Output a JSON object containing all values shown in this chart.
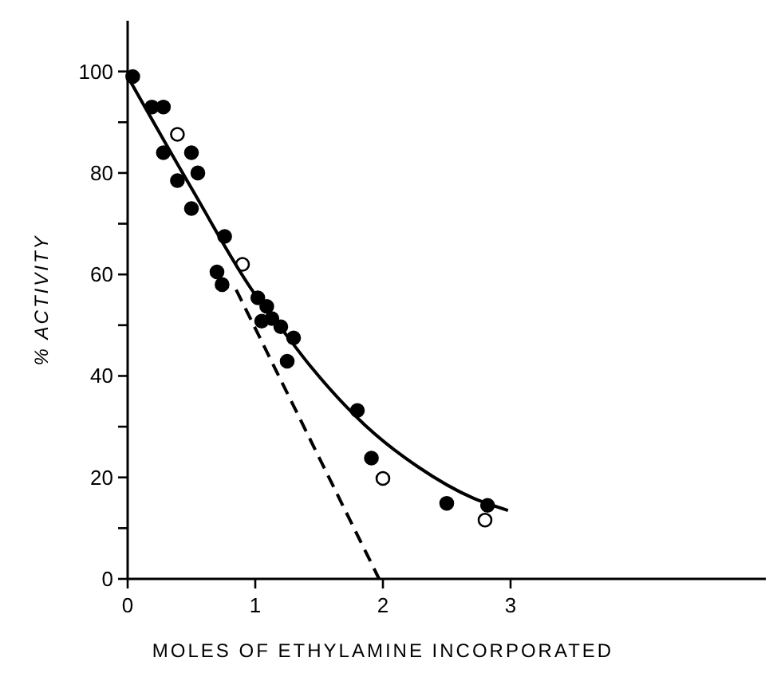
{
  "chart_data": {
    "type": "scatter",
    "xlabel": "MOLES OF ETHYLAMINE INCORPORATED",
    "ylabel": "% ACTIVITY",
    "xlim": [
      0,
      5
    ],
    "ylim": [
      0,
      110
    ],
    "xticks": [
      0,
      1,
      2,
      3
    ],
    "yticks": [
      0,
      {
        "value": 10,
        "label": null
      },
      20,
      {
        "value": 30,
        "label": null
      },
      40,
      {
        "value": 50,
        "label": null
      },
      60,
      {
        "value": 70,
        "label": null
      },
      80,
      {
        "value": 90,
        "label": null
      },
      100
    ],
    "grid": false,
    "marker": "circle",
    "series": [
      {
        "color": "#000000",
        "x": [
          0.04,
          0.19,
          0.28,
          0.28,
          0.5,
          0.39,
          0.55,
          0.5,
          0.76,
          0.7,
          0.74,
          1.02,
          1.09,
          1.05,
          1.13,
          1.2,
          1.3,
          1.25,
          1.8,
          1.91,
          2.5,
          2.82
        ],
        "values": [
          99,
          93,
          93,
          84,
          84,
          78.5,
          80,
          73,
          67.5,
          60.5,
          58,
          55.4,
          53.7,
          50.8,
          51.3,
          49.7,
          47.5,
          42.9,
          33.2,
          23.8,
          14.9,
          14.5
        ]
      },
      {
        "color": "#ffffff",
        "x": [
          0.39,
          0.9,
          2.0,
          2.8
        ],
        "values": [
          87.6,
          62,
          19.8,
          11.6
        ]
      },
      {
        "type": "line",
        "color": "#000000",
        "marker": "none",
        "line_style": "solid",
        "x": [
          0,
          0.5,
          1.0,
          1.2,
          1.43,
          1.86,
          2.28,
          2.7,
          2.98
        ],
        "values": [
          99,
          77,
          56,
          49.5,
          42,
          30.3,
          22,
          16,
          13.5
        ]
      },
      {
        "type": "line",
        "color": "#000000",
        "marker": "none",
        "line_style": "dashed",
        "x": [
          0.85,
          1.97
        ],
        "values": [
          57,
          0
        ]
      }
    ]
  }
}
